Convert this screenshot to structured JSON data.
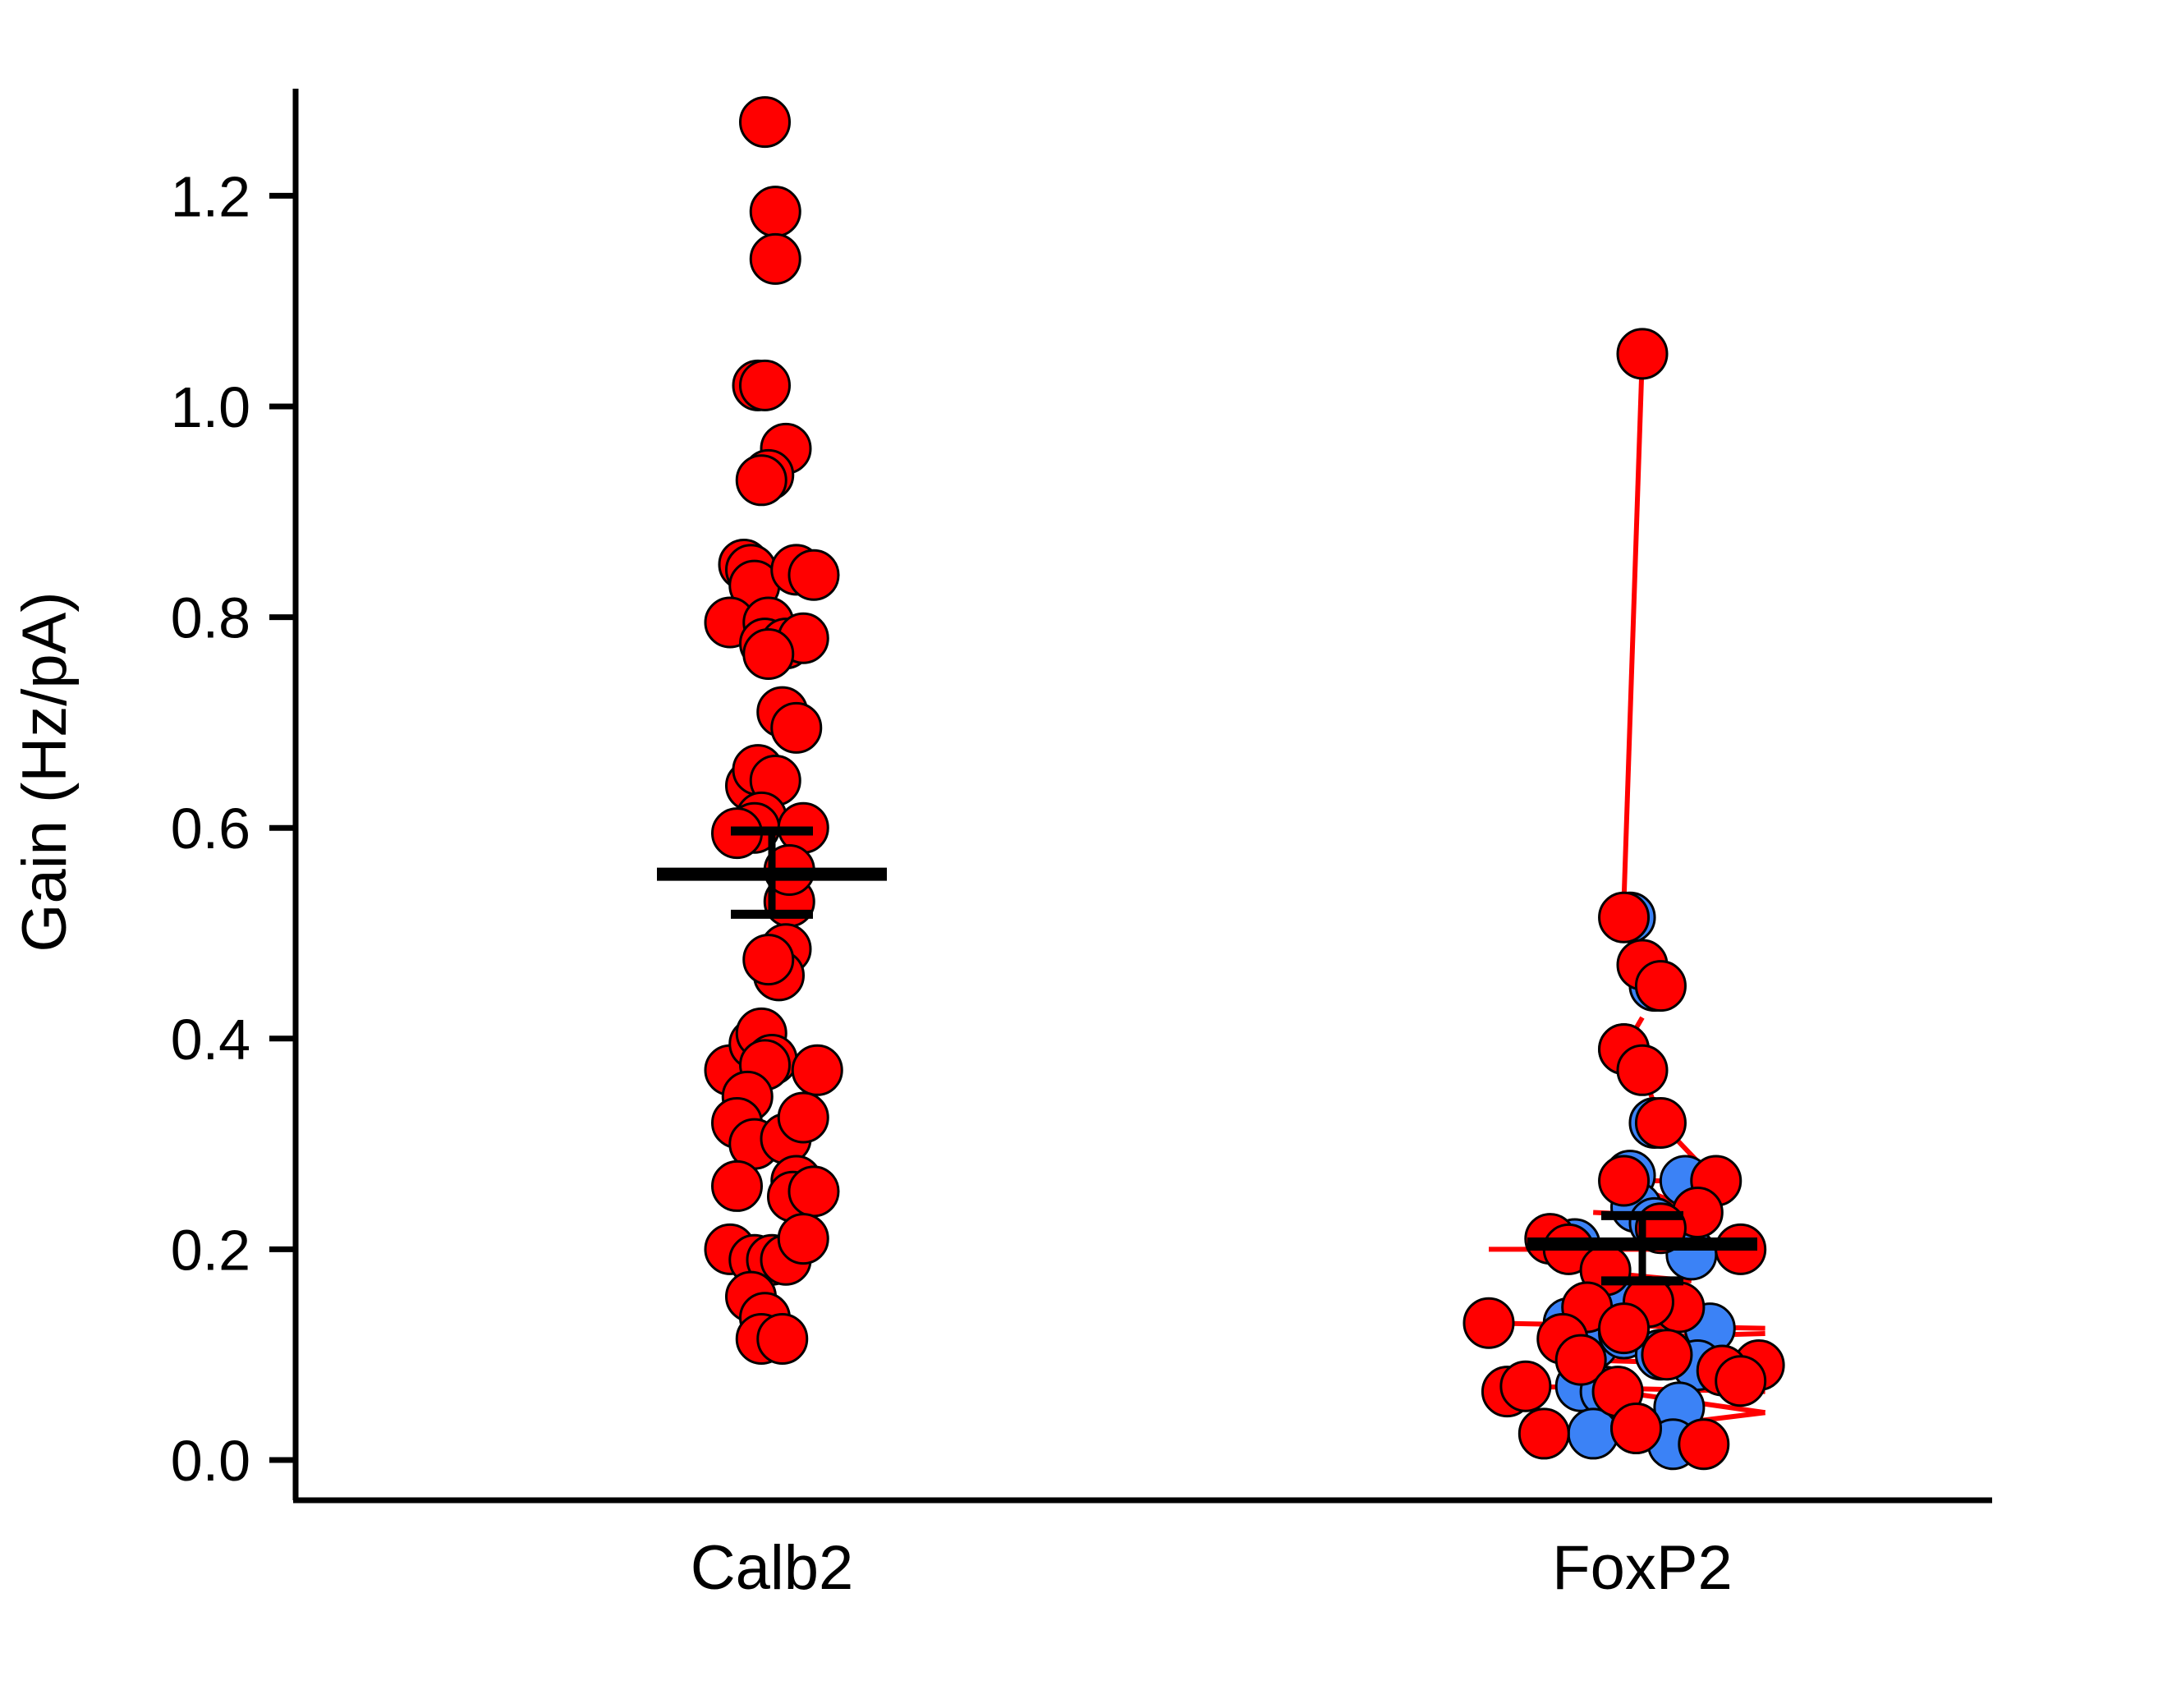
{
  "chart_data": {
    "type": "scatter",
    "xlabel": "",
    "ylabel": "Gain (Hz/pA)",
    "ylim": [
      0,
      1.3
    ],
    "yticks": [
      "0.0",
      "0.2",
      "0.4",
      "0.6",
      "0.8",
      "1.0",
      "1.2"
    ],
    "categories": [
      "Calb2",
      "FoxP2"
    ],
    "colors": {
      "red": "#ff0000",
      "blue": "#3b82f6",
      "line": "#ff0000",
      "axis": "#000000"
    },
    "groups": [
      {
        "category": "Calb2",
        "mean": 0.556,
        "sem_low": 0.518,
        "sem_high": 0.597,
        "points": [
          {
            "dx": -0.02,
            "y": 1.27
          },
          {
            "dx": 0.01,
            "y": 1.185
          },
          {
            "dx": 0.01,
            "y": 1.14
          },
          {
            "dx": -0.04,
            "y": 1.02
          },
          {
            "dx": -0.02,
            "y": 1.02
          },
          {
            "dx": 0.04,
            "y": 0.96
          },
          {
            "dx": -0.01,
            "y": 0.935
          },
          {
            "dx": -0.03,
            "y": 0.93
          },
          {
            "dx": -0.08,
            "y": 0.85
          },
          {
            "dx": -0.06,
            "y": 0.845
          },
          {
            "dx": -0.05,
            "y": 0.83
          },
          {
            "dx": 0.07,
            "y": 0.845
          },
          {
            "dx": 0.12,
            "y": 0.84
          },
          {
            "dx": -0.12,
            "y": 0.795
          },
          {
            "dx": -0.01,
            "y": 0.795
          },
          {
            "dx": -0.02,
            "y": 0.775
          },
          {
            "dx": 0.04,
            "y": 0.775
          },
          {
            "dx": 0.09,
            "y": 0.78
          },
          {
            "dx": -0.01,
            "y": 0.765
          },
          {
            "dx": 0.03,
            "y": 0.71
          },
          {
            "dx": 0.07,
            "y": 0.695
          },
          {
            "dx": -0.06,
            "y": 0.64
          },
          {
            "dx": -0.04,
            "y": 0.655
          },
          {
            "dx": 0.01,
            "y": 0.645
          },
          {
            "dx": -0.03,
            "y": 0.61
          },
          {
            "dx": -0.05,
            "y": 0.6
          },
          {
            "dx": -0.1,
            "y": 0.595
          },
          {
            "dx": 0.09,
            "y": 0.6
          },
          {
            "dx": 0.05,
            "y": 0.53
          },
          {
            "dx": 0.05,
            "y": 0.56
          },
          {
            "dx": 0.04,
            "y": 0.485
          },
          {
            "dx": 0.02,
            "y": 0.46
          },
          {
            "dx": -0.01,
            "y": 0.475
          },
          {
            "dx": -0.12,
            "y": 0.37
          },
          {
            "dx": -0.05,
            "y": 0.395
          },
          {
            "dx": -0.03,
            "y": 0.405
          },
          {
            "dx": 0.0,
            "y": 0.38
          },
          {
            "dx": -0.02,
            "y": 0.375
          },
          {
            "dx": 0.13,
            "y": 0.37
          },
          {
            "dx": -0.07,
            "y": 0.345
          },
          {
            "dx": -0.1,
            "y": 0.32
          },
          {
            "dx": -0.05,
            "y": 0.3
          },
          {
            "dx": 0.04,
            "y": 0.305
          },
          {
            "dx": 0.09,
            "y": 0.325
          },
          {
            "dx": 0.07,
            "y": 0.265
          },
          {
            "dx": 0.06,
            "y": 0.25
          },
          {
            "dx": 0.12,
            "y": 0.255
          },
          {
            "dx": -0.1,
            "y": 0.26
          },
          {
            "dx": -0.12,
            "y": 0.2
          },
          {
            "dx": -0.05,
            "y": 0.19
          },
          {
            "dx": 0.0,
            "y": 0.19
          },
          {
            "dx": 0.04,
            "y": 0.19
          },
          {
            "dx": 0.09,
            "y": 0.21
          },
          {
            "dx": -0.06,
            "y": 0.155
          },
          {
            "dx": -0.02,
            "y": 0.135
          },
          {
            "dx": -0.03,
            "y": 0.115
          },
          {
            "dx": 0.03,
            "y": 0.115
          }
        ]
      },
      {
        "category": "FoxP2",
        "mean": 0.205,
        "sem_low": 0.17,
        "sem_high": 0.232,
        "blue_points": [
          {
            "dx": -0.02,
            "y": 0.515
          },
          {
            "dx": 0.02,
            "y": 0.45
          },
          {
            "dx": -0.03,
            "y": 0.39
          },
          {
            "dx": 0.02,
            "y": 0.32
          },
          {
            "dx": -0.02,
            "y": 0.27
          },
          {
            "dx": 0.07,
            "y": 0.265
          },
          {
            "dx": -0.01,
            "y": 0.24
          },
          {
            "dx": 0.02,
            "y": 0.225
          },
          {
            "dx": -0.11,
            "y": 0.205
          },
          {
            "dx": 0.08,
            "y": 0.195
          },
          {
            "dx": -0.05,
            "y": 0.155
          },
          {
            "dx": -0.12,
            "y": 0.13
          },
          {
            "dx": 0.11,
            "y": 0.125
          },
          {
            "dx": -0.08,
            "y": 0.11
          },
          {
            "dx": -0.03,
            "y": 0.12
          },
          {
            "dx": 0.03,
            "y": 0.1
          },
          {
            "dx": 0.09,
            "y": 0.09
          },
          {
            "dx": -0.1,
            "y": 0.07
          },
          {
            "dx": -0.06,
            "y": 0.065
          },
          {
            "dx": 0.06,
            "y": 0.05
          },
          {
            "dx": -0.08,
            "y": 0.025
          },
          {
            "dx": -0.01,
            "y": 0.03
          },
          {
            "dx": 0.05,
            "y": 0.015
          }
        ],
        "red_points": [
          {
            "dx": 0.0,
            "y": 1.05
          },
          {
            "dx": -0.03,
            "y": 0.515
          },
          {
            "dx": 0.0,
            "y": 0.47
          },
          {
            "dx": 0.03,
            "y": 0.45
          },
          {
            "dx": -0.03,
            "y": 0.39
          },
          {
            "dx": 0.0,
            "y": 0.37
          },
          {
            "dx": 0.03,
            "y": 0.32
          },
          {
            "dx": 0.12,
            "y": 0.265
          },
          {
            "dx": -0.03,
            "y": 0.265
          },
          {
            "dx": 0.09,
            "y": 0.235
          },
          {
            "dx": 0.03,
            "y": 0.22
          },
          {
            "dx": -0.15,
            "y": 0.21
          },
          {
            "dx": -0.12,
            "y": 0.2
          },
          {
            "dx": 0.16,
            "y": 0.2
          },
          {
            "dx": -0.06,
            "y": 0.18
          },
          {
            "dx": -0.09,
            "y": 0.145
          },
          {
            "dx": 0.06,
            "y": 0.145
          },
          {
            "dx": 0.01,
            "y": 0.15
          },
          {
            "dx": -0.03,
            "y": 0.125
          },
          {
            "dx": -0.25,
            "y": 0.13
          },
          {
            "dx": -0.13,
            "y": 0.115
          },
          {
            "dx": 0.04,
            "y": 0.1
          },
          {
            "dx": -0.1,
            "y": 0.095
          },
          {
            "dx": 0.19,
            "y": 0.09
          },
          {
            "dx": 0.13,
            "y": 0.085
          },
          {
            "dx": 0.16,
            "y": 0.075
          },
          {
            "dx": -0.22,
            "y": 0.065
          },
          {
            "dx": -0.19,
            "y": 0.07
          },
          {
            "dx": -0.04,
            "y": 0.065
          },
          {
            "dx": -0.16,
            "y": 0.025
          },
          {
            "dx": -0.01,
            "y": 0.03
          },
          {
            "dx": 0.1,
            "y": 0.015
          }
        ],
        "lines": [
          [
            {
              "dx": -0.03,
              "y": 0.53
            },
            {
              "dx": 0.0,
              "y": 1.05
            }
          ],
          [
            {
              "dx": -0.03,
              "y": 0.39
            },
            {
              "dx": 0.0,
              "y": 0.42
            }
          ],
          [
            {
              "dx": 0.0,
              "y": 0.47
            },
            {
              "dx": 0.03,
              "y": 0.45
            }
          ],
          [
            {
              "dx": 0.0,
              "y": 0.37
            },
            {
              "dx": 0.03,
              "y": 0.32
            }
          ],
          [
            {
              "dx": 0.03,
              "y": 0.32
            },
            {
              "dx": 0.12,
              "y": 0.265
            }
          ],
          [
            {
              "dx": -0.03,
              "y": 0.265
            },
            {
              "dx": 0.1,
              "y": 0.265
            }
          ],
          [
            {
              "dx": -0.03,
              "y": 0.265
            },
            {
              "dx": 0.09,
              "y": 0.235
            }
          ],
          [
            {
              "dx": -0.08,
              "y": 0.235
            },
            {
              "dx": 0.11,
              "y": 0.23
            }
          ],
          [
            {
              "dx": -0.25,
              "y": 0.2
            },
            {
              "dx": 0.2,
              "y": 0.2
            }
          ],
          [
            {
              "dx": -0.1,
              "y": 0.18
            },
            {
              "dx": 0.08,
              "y": 0.17
            }
          ],
          [
            {
              "dx": -0.25,
              "y": 0.13
            },
            {
              "dx": 0.2,
              "y": 0.125
            }
          ],
          [
            {
              "dx": -0.12,
              "y": 0.115
            },
            {
              "dx": 0.2,
              "y": 0.12
            }
          ],
          [
            {
              "dx": -0.1,
              "y": 0.095
            },
            {
              "dx": 0.19,
              "y": 0.09
            }
          ],
          [
            {
              "dx": -0.2,
              "y": 0.07
            },
            {
              "dx": 0.2,
              "y": 0.065
            }
          ],
          [
            {
              "dx": -0.04,
              "y": 0.065
            },
            {
              "dx": 0.2,
              "y": 0.045
            }
          ],
          [
            {
              "dx": -0.16,
              "y": 0.025
            },
            {
              "dx": 0.1,
              "y": 0.015
            }
          ],
          [
            {
              "dx": -0.01,
              "y": 0.03
            },
            {
              "dx": 0.2,
              "y": 0.045
            }
          ]
        ]
      }
    ]
  }
}
